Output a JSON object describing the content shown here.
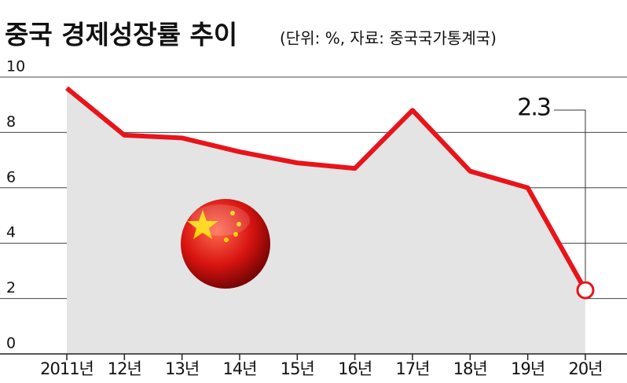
{
  "chart_data": {
    "type": "line",
    "title": "중국 경제성장률 추이",
    "subtitle": "(단위: %, 자료: 중국국가통계국)",
    "categories": [
      "2011년",
      "12년",
      "13년",
      "14년",
      "15년",
      "16년",
      "17년",
      "18년",
      "19년",
      "20년"
    ],
    "series": [
      {
        "name": "경제성장률",
        "color": "#e8141a",
        "values": [
          9.6,
          7.9,
          7.8,
          7.3,
          6.9,
          6.7,
          8.8,
          6.6,
          6.0,
          2.3
        ]
      }
    ],
    "ylim": [
      0,
      10
    ],
    "yticks": [
      0,
      2,
      4,
      6,
      8,
      10
    ],
    "grid": true
  }
}
